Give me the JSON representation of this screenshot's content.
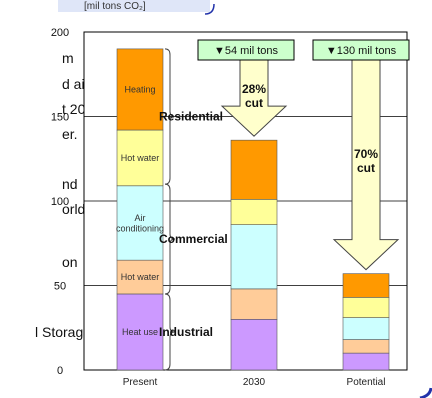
{
  "bg_text": {
    "line1": "m",
    "line2": "d air",
    "line3": "t 20",
    "line4": "er.",
    "line5": "nd",
    "line6": "orld,",
    "line7": "on",
    "line8": "l Storage"
  },
  "chart_data": {
    "type": "bar",
    "title": "",
    "ylabel": "[mil tons CO₂]",
    "xlabel": "",
    "categories": [
      "Present",
      "2030",
      "Potential"
    ],
    "yticks": [
      0,
      50,
      100,
      150,
      200
    ],
    "ylim": [
      0,
      200
    ],
    "grid": true,
    "series": [
      {
        "name": "Heat use",
        "color": "#cc99ff",
        "values": [
          45,
          30,
          10
        ]
      },
      {
        "name": "Hot water",
        "color": "#ffcc99",
        "values": [
          20,
          18,
          8
        ]
      },
      {
        "name": "Air conditioning",
        "color": "#ccffff",
        "values": [
          44,
          38,
          13
        ]
      },
      {
        "name": "Hot water",
        "color": "#ffff99",
        "values": [
          33,
          15,
          12
        ]
      },
      {
        "name": "Heating",
        "color": "#ff9900",
        "values": [
          48,
          35,
          14
        ]
      }
    ],
    "segment_labels": [
      {
        "text": "Heating",
        "bar": 0,
        "segment": 4
      },
      {
        "text": "Hot water",
        "bar": 0,
        "segment": 3
      },
      {
        "text": "Air\nconditioning",
        "bar": 0,
        "segment": 2
      },
      {
        "text": "Hot water",
        "bar": 0,
        "segment": 1
      },
      {
        "text": "Heat use",
        "bar": 0,
        "segment": 0
      }
    ],
    "groups": [
      {
        "label": "Residential",
        "from": 110,
        "to": 190
      },
      {
        "label": "Commercial",
        "from": 45,
        "to": 110
      },
      {
        "label": "Industrial",
        "from": 0,
        "to": 45
      }
    ],
    "annotations": [
      {
        "reduction": "▼54 mil tons",
        "cut": "28%\ncut",
        "bar": 1
      },
      {
        "reduction": "▼130 mil tons",
        "cut": "70%\ncut",
        "bar": 2
      }
    ],
    "colors": {
      "frame": "#2233aa",
      "arrow_fill": "#ffffcc",
      "box_fill": "#ccffcc"
    }
  }
}
